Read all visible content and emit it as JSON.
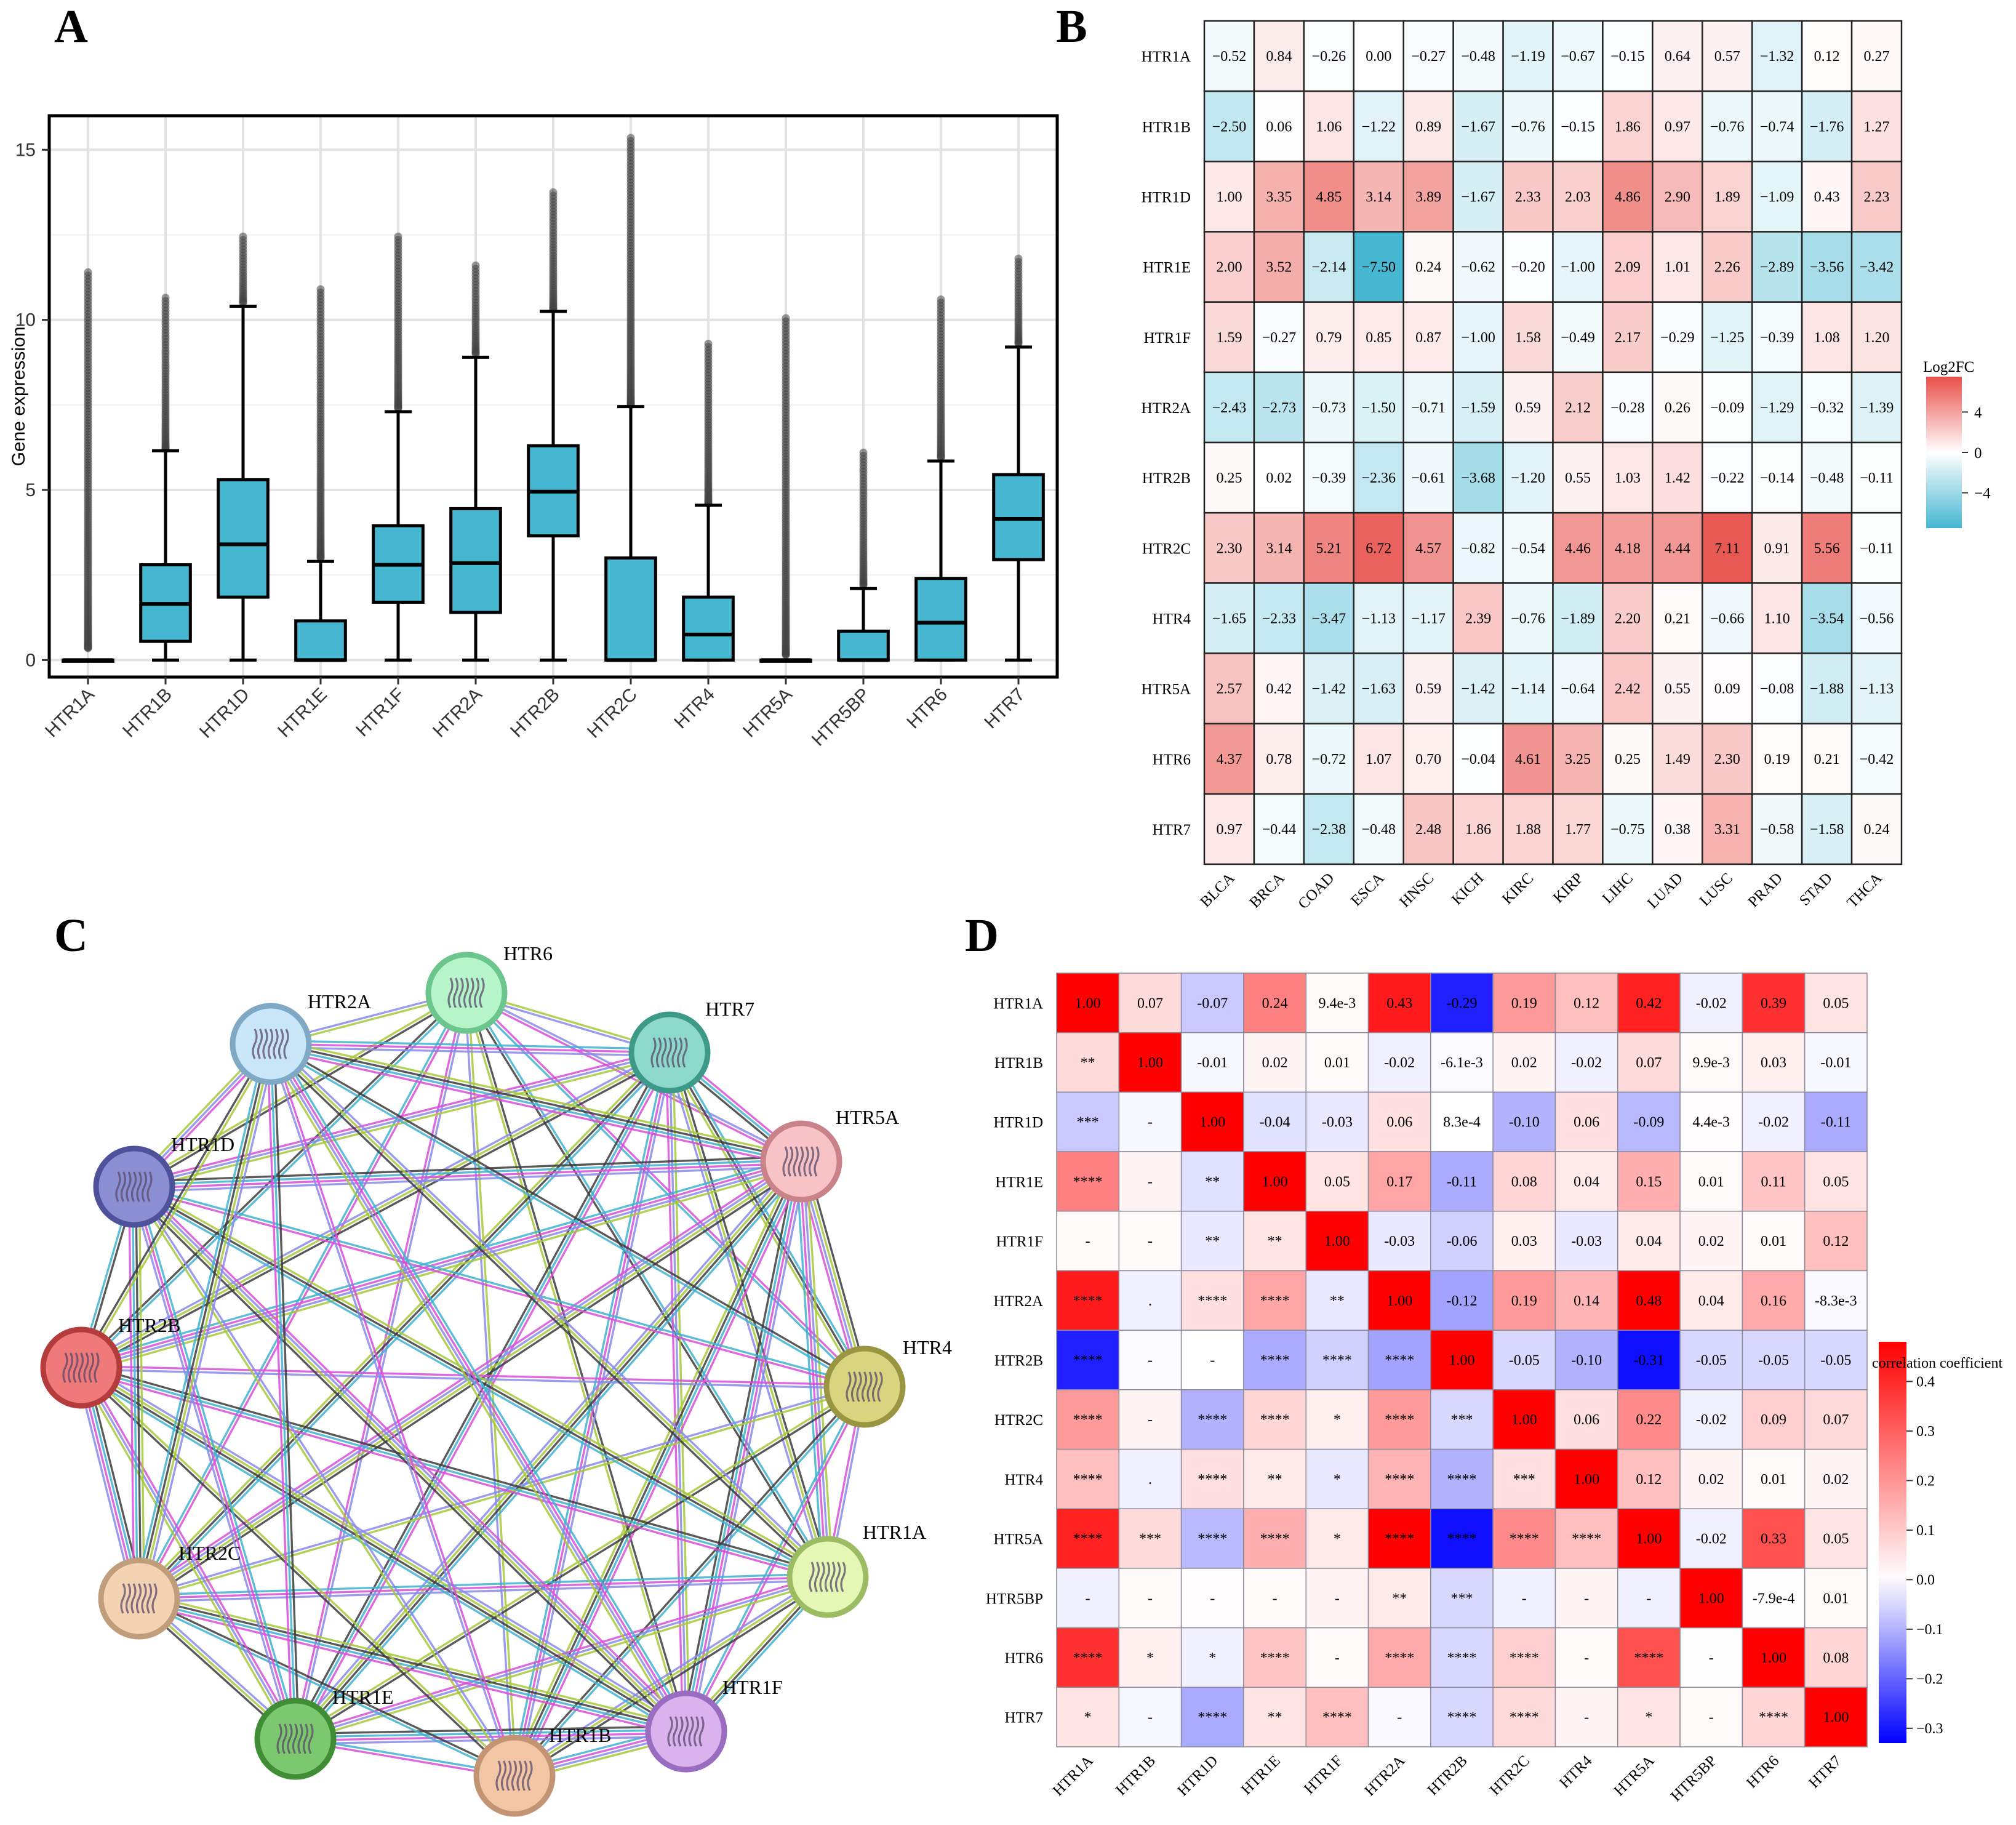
{
  "panels": {
    "a": "A",
    "b": "B",
    "c": "C",
    "d": "D"
  },
  "chart_data": [
    {
      "type": "box",
      "panel": "A",
      "ylabel": "Gene expression",
      "xlabel": "",
      "ylim": [
        -0.5,
        16.0
      ],
      "yticks": [
        0,
        5,
        10,
        15
      ],
      "box_color": "#45b7d1",
      "categories": [
        "HTR1A",
        "HTR1B",
        "HTR1D",
        "HTR1E",
        "HTR1F",
        "HTR2A",
        "HTR2B",
        "HTR2C",
        "HTR4",
        "HTR5A",
        "HTR5BP",
        "HTR6",
        "HTR7"
      ],
      "q1": [
        0,
        0.55,
        1.85,
        0,
        1.7,
        1.4,
        3.65,
        0,
        0,
        0,
        0,
        0,
        2.95
      ],
      "median": [
        0,
        1.65,
        3.4,
        0,
        2.8,
        2.85,
        4.95,
        0,
        0.75,
        0,
        0,
        1.1,
        4.15
      ],
      "q3": [
        0,
        2.8,
        5.3,
        1.15,
        3.95,
        4.45,
        6.3,
        3.0,
        1.85,
        0,
        0.85,
        2.4,
        5.45
      ],
      "whisker_low": [
        0,
        0,
        0,
        0,
        0,
        0,
        0,
        0,
        0,
        0,
        0,
        0,
        0
      ],
      "whisker_high": [
        0,
        6.15,
        10.4,
        2.9,
        7.3,
        8.9,
        10.25,
        7.45,
        4.55,
        0,
        2.1,
        5.85,
        9.2
      ],
      "outlier_max": [
        11.4,
        10.65,
        12.45,
        10.9,
        12.45,
        11.6,
        13.75,
        15.35,
        9.3,
        10.05,
        6.1,
        10.6,
        11.8
      ],
      "outlier_min": [
        0.35,
        6.2,
        10.5,
        3.0,
        7.4,
        9.0,
        10.3,
        7.5,
        4.6,
        0.15,
        2.2,
        5.95,
        9.3
      ]
    },
    {
      "type": "heatmap",
      "panel": "B",
      "legend_title": "Log2FC",
      "legend_ticks": [
        "4",
        "0",
        "−4"
      ],
      "legend_tick_values": [
        4,
        0,
        -4
      ],
      "color_range": [
        -7.5,
        7.5
      ],
      "colors": {
        "low": "#45b7d1",
        "mid": "#ffffff",
        "high": "#e8504a"
      },
      "rows": [
        "HTR1A",
        "HTR1B",
        "HTR1D",
        "HTR1E",
        "HTR1F",
        "HTR2A",
        "HTR2B",
        "HTR2C",
        "HTR4",
        "HTR5A",
        "HTR6",
        "HTR7"
      ],
      "cols": [
        "BLCA",
        "BRCA",
        "COAD",
        "ESCA",
        "HNSC",
        "KICH",
        "KIRC",
        "KIRP",
        "LIHC",
        "LUAD",
        "LUSC",
        "PRAD",
        "STAD",
        "THCA"
      ],
      "values": [
        [
          -0.52,
          0.84,
          -0.26,
          0.0,
          -0.27,
          -0.48,
          -1.19,
          -0.67,
          -0.15,
          0.64,
          0.57,
          -1.32,
          0.12,
          0.27
        ],
        [
          -2.5,
          0.06,
          1.06,
          -1.22,
          0.89,
          -1.67,
          -0.76,
          -0.15,
          1.86,
          0.97,
          -0.76,
          -0.74,
          -1.76,
          1.27
        ],
        [
          1.0,
          3.35,
          4.85,
          3.14,
          3.89,
          -1.67,
          2.33,
          2.03,
          4.86,
          2.9,
          1.89,
          -1.09,
          0.43,
          2.23
        ],
        [
          2.0,
          3.52,
          -2.14,
          -7.5,
          0.24,
          -0.62,
          -0.2,
          -1.0,
          2.09,
          1.01,
          2.26,
          -2.89,
          -3.56,
          -3.42
        ],
        [
          1.59,
          -0.27,
          0.79,
          0.85,
          0.87,
          -1.0,
          1.58,
          -0.49,
          2.17,
          -0.29,
          -1.25,
          -0.39,
          1.08,
          1.2
        ],
        [
          -2.43,
          -2.73,
          -0.73,
          -1.5,
          -0.71,
          -1.59,
          0.59,
          2.12,
          -0.28,
          0.26,
          -0.09,
          -1.29,
          -0.32,
          -1.39
        ],
        [
          0.25,
          0.02,
          -0.39,
          -2.36,
          -0.61,
          -3.68,
          -1.2,
          0.55,
          1.03,
          1.42,
          -0.22,
          -0.14,
          -0.48,
          -0.11
        ],
        [
          2.3,
          3.14,
          5.21,
          6.72,
          4.57,
          -0.82,
          -0.54,
          4.46,
          4.18,
          4.44,
          7.11,
          0.91,
          5.56,
          -0.11
        ],
        [
          -1.65,
          -2.33,
          -3.47,
          -1.13,
          -1.17,
          2.39,
          -0.76,
          -1.89,
          2.2,
          0.21,
          -0.66,
          1.1,
          -3.54,
          -0.56
        ],
        [
          2.57,
          0.42,
          -1.42,
          -1.63,
          0.59,
          -1.42,
          -1.14,
          -0.64,
          2.42,
          0.55,
          0.09,
          -0.08,
          -1.88,
          -1.13
        ],
        [
          4.37,
          0.78,
          -0.72,
          1.07,
          0.7,
          -0.04,
          4.61,
          3.25,
          0.25,
          1.49,
          2.3,
          0.19,
          0.21,
          -0.42
        ],
        [
          0.97,
          -0.44,
          -2.38,
          -0.48,
          2.48,
          1.86,
          1.88,
          1.77,
          -0.75,
          0.38,
          3.31,
          -0.58,
          -1.58,
          0.24
        ]
      ],
      "labels": [
        [
          "−0.52",
          "0.84",
          "−0.26",
          "0.00",
          "−0.27",
          "−0.48",
          "−1.19",
          "−0.67",
          "−0.15",
          "0.64",
          "0.57",
          "−1.32",
          "0.12",
          "0.27"
        ],
        [
          "−2.50",
          "0.06",
          "1.06",
          "−1.22",
          "0.89",
          "−1.67",
          "−0.76",
          "−0.15",
          "1.86",
          "0.97",
          "−0.76",
          "−0.74",
          "−1.76",
          "1.27"
        ],
        [
          "1.00",
          "3.35",
          "4.85",
          "3.14",
          "3.89",
          "−1.67",
          "2.33",
          "2.03",
          "4.86",
          "2.90",
          "1.89",
          "−1.09",
          "0.43",
          "2.23"
        ],
        [
          "2.00",
          "3.52",
          "−2.14",
          "−7.50",
          "0.24",
          "−0.62",
          "−0.20",
          "−1.00",
          "2.09",
          "1.01",
          "2.26",
          "−2.89",
          "−3.56",
          "−3.42"
        ],
        [
          "1.59",
          "−0.27",
          "0.79",
          "0.85",
          "0.87",
          "−1.00",
          "1.58",
          "−0.49",
          "2.17",
          "−0.29",
          "−1.25",
          "−0.39",
          "1.08",
          "1.20"
        ],
        [
          "−2.43",
          "−2.73",
          "−0.73",
          "−1.50",
          "−0.71",
          "−1.59",
          "0.59",
          "2.12",
          "−0.28",
          "0.26",
          "−0.09",
          "−1.29",
          "−0.32",
          "−1.39"
        ],
        [
          "0.25",
          "0.02",
          "−0.39",
          "−2.36",
          "−0.61",
          "−3.68",
          "−1.20",
          "0.55",
          "1.03",
          "1.42",
          "−0.22",
          "−0.14",
          "−0.48",
          "−0.11"
        ],
        [
          "2.30",
          "3.14",
          "5.21",
          "6.72",
          "4.57",
          "−0.82",
          "−0.54",
          "4.46",
          "4.18",
          "4.44",
          "7.11",
          "0.91",
          "5.56",
          "−0.11"
        ],
        [
          "−1.65",
          "−2.33",
          "−3.47",
          "−1.13",
          "−1.17",
          "2.39",
          "−0.76",
          "−1.89",
          "2.20",
          "0.21",
          "−0.66",
          "1.10",
          "−3.54",
          "−0.56"
        ],
        [
          "2.57",
          "0.42",
          "−1.42",
          "−1.63",
          "0.59",
          "−1.42",
          "−1.14",
          "−0.64",
          "2.42",
          "0.55",
          "0.09",
          "−0.08",
          "−1.88",
          "−1.13"
        ],
        [
          "4.37",
          "0.78",
          "−0.72",
          "1.07",
          "0.70",
          "−0.04",
          "4.61",
          "3.25",
          "0.25",
          "1.49",
          "2.30",
          "0.19",
          "0.21",
          "−0.42"
        ],
        [
          "0.97",
          "−0.44",
          "−2.38",
          "−0.48",
          "2.48",
          "1.86",
          "1.88",
          "1.77",
          "−0.75",
          "0.38",
          "3.31",
          "−0.58",
          "−1.58",
          "0.24"
        ]
      ]
    },
    {
      "type": "network",
      "panel": "C",
      "nodes": [
        {
          "id": "HTR6",
          "color": "#b6f5c9",
          "border": "#6cc58c"
        },
        {
          "id": "HTR7",
          "color": "#8dd9cb",
          "border": "#3d9a89"
        },
        {
          "id": "HTR5A",
          "color": "#f7c3c7",
          "border": "#c98287"
        },
        {
          "id": "HTR4",
          "color": "#d8d47f",
          "border": "#9a9540"
        },
        {
          "id": "HTR1A",
          "color": "#e4f7b4",
          "border": "#9cbc64"
        },
        {
          "id": "HTR1F",
          "color": "#d9b2ee",
          "border": "#9a6cc1"
        },
        {
          "id": "HTR1B",
          "color": "#f2c6a5",
          "border": "#c29474"
        },
        {
          "id": "HTR1E",
          "color": "#7cc86e",
          "border": "#3f8e35"
        },
        {
          "id": "HTR2C",
          "color": "#f4d3b3",
          "border": "#c09d7b"
        },
        {
          "id": "HTR2B",
          "color": "#f07a7a",
          "border": "#b43c3c"
        },
        {
          "id": "HTR1D",
          "color": "#8a8fd4",
          "border": "#4d529b"
        },
        {
          "id": "HTR2A",
          "color": "#c8e6f7",
          "border": "#7fa8c4"
        }
      ],
      "edge_colors": [
        "#3c3c3c",
        "#a6c93a",
        "#8a8ae8",
        "#d84fd8",
        "#3fb1d0"
      ]
    },
    {
      "type": "heatmap",
      "panel": "D",
      "legend_title": "correlation coefficient",
      "legend_ticks": [
        "0.4",
        "0.3",
        "0.2",
        "0.1",
        "0.0",
        "−0.1",
        "−0.2",
        "−0.3"
      ],
      "legend_tick_values": [
        0.4,
        0.3,
        0.2,
        0.1,
        0.0,
        -0.1,
        -0.2,
        -0.3
      ],
      "color_range": [
        -0.33,
        0.48
      ],
      "colors": {
        "low": "#0000ff",
        "mid": "#ffffff",
        "high": "#ff0000"
      },
      "rows": [
        "HTR1A",
        "HTR1B",
        "HTR1D",
        "HTR1E",
        "HTR1F",
        "HTR2A",
        "HTR2B",
        "HTR2C",
        "HTR4",
        "HTR5A",
        "HTR5BP",
        "HTR6",
        "HTR7"
      ],
      "cols": [
        "HTR1A",
        "HTR1B",
        "HTR1D",
        "HTR1E",
        "HTR1F",
        "HTR2A",
        "HTR2B",
        "HTR2C",
        "HTR4",
        "HTR5A",
        "HTR5BP",
        "HTR6",
        "HTR7"
      ],
      "values": [
        [
          1.0,
          0.07,
          -0.07,
          0.24,
          0.0094,
          0.43,
          -0.29,
          0.19,
          0.12,
          0.42,
          -0.02,
          0.39,
          0.05
        ],
        [
          0.07,
          1.0,
          -0.01,
          0.02,
          0.01,
          -0.02,
          -0.0061,
          0.02,
          -0.02,
          0.07,
          0.0099,
          0.03,
          -0.01
        ],
        [
          -0.07,
          -0.01,
          1.0,
          -0.04,
          -0.03,
          0.06,
          0.00083,
          -0.1,
          0.06,
          -0.09,
          0.0044,
          -0.02,
          -0.11
        ],
        [
          0.24,
          0.02,
          -0.04,
          1.0,
          0.05,
          0.17,
          -0.11,
          0.08,
          0.04,
          0.15,
          0.01,
          0.11,
          0.05
        ],
        [
          0.0094,
          0.01,
          -0.03,
          0.05,
          1.0,
          -0.03,
          -0.06,
          0.03,
          -0.03,
          0.04,
          0.02,
          0.01,
          0.12
        ],
        [
          0.43,
          -0.02,
          0.06,
          0.17,
          -0.03,
          1.0,
          -0.12,
          0.19,
          0.14,
          0.48,
          0.04,
          0.16,
          -0.0083
        ],
        [
          -0.29,
          -0.0061,
          0.00083,
          -0.11,
          -0.06,
          -0.12,
          1.0,
          -0.05,
          -0.1,
          -0.31,
          -0.05,
          -0.05,
          -0.05
        ],
        [
          0.19,
          0.02,
          -0.1,
          0.08,
          0.03,
          0.19,
          -0.05,
          1.0,
          0.06,
          0.22,
          -0.02,
          0.09,
          0.07
        ],
        [
          0.12,
          -0.02,
          0.06,
          0.04,
          -0.03,
          0.14,
          -0.1,
          0.06,
          1.0,
          0.12,
          0.02,
          0.01,
          0.02
        ],
        [
          0.42,
          0.07,
          -0.09,
          0.15,
          0.04,
          0.48,
          -0.31,
          0.22,
          0.12,
          1.0,
          -0.02,
          0.33,
          0.05
        ],
        [
          -0.02,
          0.0099,
          0.0044,
          0.01,
          0.02,
          0.04,
          -0.05,
          -0.02,
          0.02,
          -0.02,
          1.0,
          -0.00079,
          0.01
        ],
        [
          0.39,
          0.03,
          -0.02,
          0.11,
          0.01,
          0.16,
          -0.05,
          0.09,
          0.01,
          0.33,
          -0.00079,
          1.0,
          0.08
        ],
        [
          0.05,
          -0.01,
          -0.11,
          0.05,
          0.12,
          -0.0083,
          -0.05,
          0.07,
          0.02,
          0.05,
          0.01,
          0.08,
          1.0
        ]
      ],
      "labels": [
        [
          "1.00",
          "0.07",
          "-0.07",
          "0.24",
          "9.4e-3",
          "0.43",
          "-0.29",
          "0.19",
          "0.12",
          "0.42",
          "-0.02",
          "0.39",
          "0.05"
        ],
        [
          "**",
          "1.00",
          "-0.01",
          "0.02",
          "0.01",
          "-0.02",
          "-6.1e-3",
          "0.02",
          "-0.02",
          "0.07",
          "9.9e-3",
          "0.03",
          "-0.01"
        ],
        [
          "***",
          "-",
          "1.00",
          "-0.04",
          "-0.03",
          "0.06",
          "8.3e-4",
          "-0.10",
          "0.06",
          "-0.09",
          "4.4e-3",
          "-0.02",
          "-0.11"
        ],
        [
          "****",
          "-",
          "**",
          "1.00",
          "0.05",
          "0.17",
          "-0.11",
          "0.08",
          "0.04",
          "0.15",
          "0.01",
          "0.11",
          "0.05"
        ],
        [
          "-",
          "-",
          "**",
          "**",
          "1.00",
          "-0.03",
          "-0.06",
          "0.03",
          "-0.03",
          "0.04",
          "0.02",
          "0.01",
          "0.12"
        ],
        [
          "****",
          ".",
          "****",
          "****",
          "**",
          "1.00",
          "-0.12",
          "0.19",
          "0.14",
          "0.48",
          "0.04",
          "0.16",
          "-8.3e-3"
        ],
        [
          "****",
          "-",
          "-",
          "****",
          "****",
          "****",
          "1.00",
          "-0.05",
          "-0.10",
          "-0.31",
          "-0.05",
          "-0.05",
          "-0.05"
        ],
        [
          "****",
          "-",
          "****",
          "****",
          "*",
          "****",
          "***",
          "1.00",
          "0.06",
          "0.22",
          "-0.02",
          "0.09",
          "0.07"
        ],
        [
          "****",
          ".",
          "****",
          "**",
          "*",
          "****",
          "****",
          "***",
          "1.00",
          "0.12",
          "0.02",
          "0.01",
          "0.02"
        ],
        [
          "****",
          "***",
          "****",
          "****",
          "*",
          "****",
          "****",
          "****",
          "****",
          "1.00",
          "-0.02",
          "0.33",
          "0.05"
        ],
        [
          "-",
          "-",
          "-",
          "-",
          "-",
          "**",
          "***",
          "-",
          "-",
          "-",
          "1.00",
          "-7.9e-4",
          "0.01"
        ],
        [
          "****",
          "*",
          "*",
          "****",
          "-",
          "****",
          "****",
          "****",
          "-",
          "****",
          "-",
          "1.00",
          "0.08"
        ],
        [
          "*",
          "-",
          "****",
          "**",
          "****",
          "-",
          "****",
          "****",
          "-",
          "*",
          "-",
          "****",
          "1.00"
        ]
      ]
    }
  ]
}
